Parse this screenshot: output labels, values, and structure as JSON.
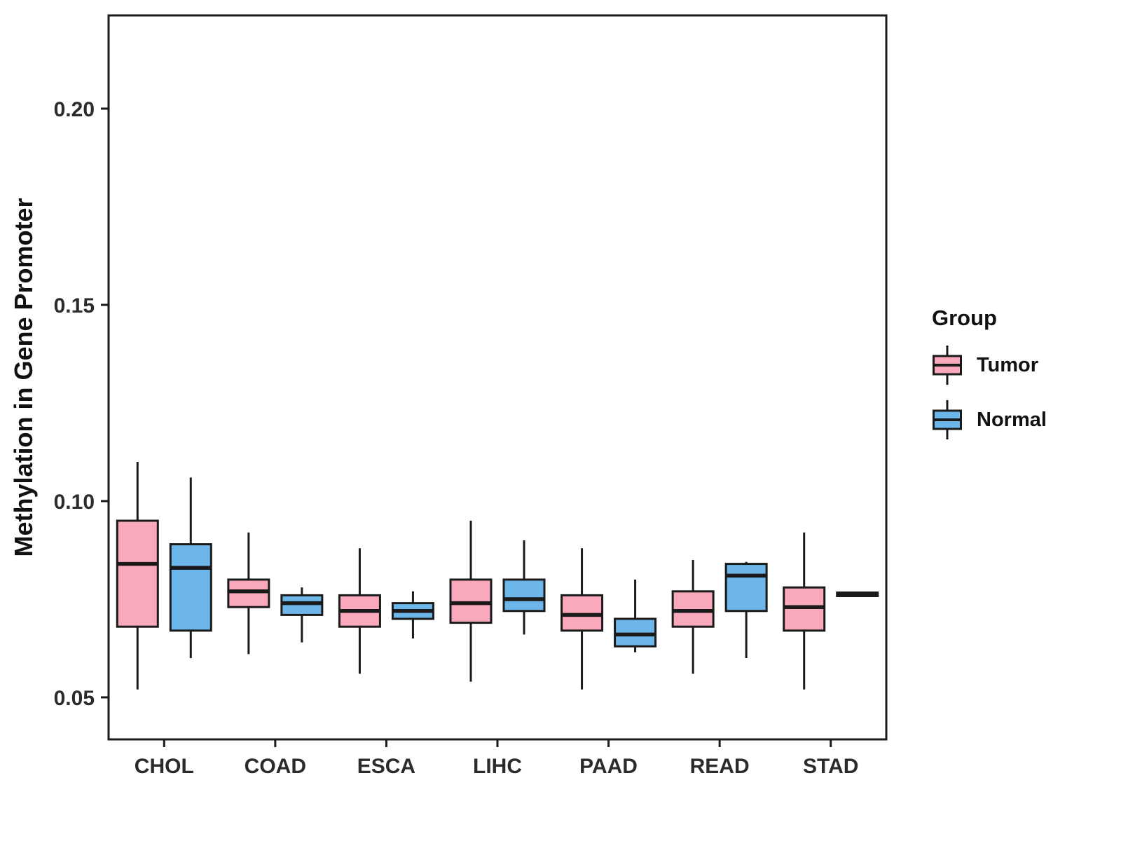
{
  "chart_data": {
    "type": "boxplot",
    "title": "",
    "xlabel": "",
    "ylabel": "Methylation in Gene Promoter",
    "categories": [
      "CHOL",
      "COAD",
      "ESCA",
      "LIHC",
      "PAAD",
      "READ",
      "STAD"
    ],
    "yticks": [
      0.05,
      0.1,
      0.15,
      0.2
    ],
    "ylim": [
      0.039,
      0.224
    ],
    "grid": false,
    "legend": {
      "title": "Group",
      "position": "right",
      "entries": [
        {
          "label": "Tumor",
          "color": "#F9A9BB"
        },
        {
          "label": "Normal",
          "color": "#6DB6E9"
        }
      ]
    },
    "colors": {
      "box_stroke": "#1a1a1a",
      "panel_border": "#1a1a1a",
      "tick_text": "#2b2b2b"
    },
    "series": [
      {
        "name": "Tumor",
        "color": "#F9A9BB",
        "boxes": [
          {
            "category": "CHOL",
            "low": 0.052,
            "q1": 0.068,
            "median": 0.084,
            "q3": 0.095,
            "high": 0.11
          },
          {
            "category": "COAD",
            "low": 0.061,
            "q1": 0.073,
            "median": 0.077,
            "q3": 0.08,
            "high": 0.092
          },
          {
            "category": "ESCA",
            "low": 0.056,
            "q1": 0.068,
            "median": 0.072,
            "q3": 0.076,
            "high": 0.088
          },
          {
            "category": "LIHC",
            "low": 0.054,
            "q1": 0.069,
            "median": 0.074,
            "q3": 0.08,
            "high": 0.095
          },
          {
            "category": "PAAD",
            "low": 0.052,
            "q1": 0.067,
            "median": 0.071,
            "q3": 0.076,
            "high": 0.088
          },
          {
            "category": "READ",
            "low": 0.056,
            "q1": 0.068,
            "median": 0.072,
            "q3": 0.077,
            "high": 0.085
          },
          {
            "category": "STAD",
            "low": 0.052,
            "q1": 0.067,
            "median": 0.073,
            "q3": 0.078,
            "high": 0.092
          }
        ]
      },
      {
        "name": "Normal",
        "color": "#6DB6E9",
        "boxes": [
          {
            "category": "CHOL",
            "low": 0.06,
            "q1": 0.067,
            "median": 0.083,
            "q3": 0.089,
            "high": 0.106
          },
          {
            "category": "COAD",
            "low": 0.064,
            "q1": 0.071,
            "median": 0.074,
            "q3": 0.076,
            "high": 0.078
          },
          {
            "category": "ESCA",
            "low": 0.065,
            "q1": 0.07,
            "median": 0.072,
            "q3": 0.074,
            "high": 0.077
          },
          {
            "category": "LIHC",
            "low": 0.066,
            "q1": 0.072,
            "median": 0.075,
            "q3": 0.08,
            "high": 0.09
          },
          {
            "category": "PAAD",
            "low": 0.0615,
            "q1": 0.063,
            "median": 0.066,
            "q3": 0.07,
            "high": 0.08
          },
          {
            "category": "READ",
            "low": 0.06,
            "q1": 0.072,
            "median": 0.081,
            "q3": 0.084,
            "high": 0.0845
          },
          {
            "category": "STAD",
            "low": 0.076,
            "q1": 0.0758,
            "median": 0.0763,
            "q3": 0.0767,
            "high": 0.0768
          }
        ]
      }
    ]
  }
}
